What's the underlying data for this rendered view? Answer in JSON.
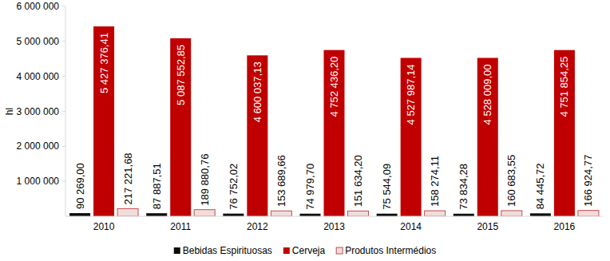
{
  "chart_data": {
    "type": "bar",
    "y_label": "hl",
    "categories": [
      "2010",
      "2011",
      "2012",
      "2013",
      "2014",
      "2015",
      "2016"
    ],
    "series": [
      {
        "name": "Bebidas Espirituosas",
        "color": "#0d0d0d",
        "values": [
          90269.0,
          87887.51,
          76752.02,
          74979.7,
          75544.09,
          73834.28,
          84445.72
        ],
        "value_labels": [
          "90 269,00",
          "87 887,51",
          "76 752,02",
          "74 979,70",
          "75 544,09",
          "73 834,28",
          "84 445,72"
        ]
      },
      {
        "name": "Cerveja",
        "color": "#c00000",
        "values": [
          5427376.41,
          5087552.85,
          4600037.13,
          4752436.2,
          4527987.14,
          4528009.0,
          4751854.25
        ],
        "value_labels": [
          "5 427 376,41",
          "5 087 552,85",
          "4 600 037,13",
          "4 752 436,20",
          "4 527 987,14",
          "4 528 009,00",
          "4 751 854,25"
        ]
      },
      {
        "name": "Produtos Intermédios",
        "color": "#f2dcdb",
        "values": [
          217221.68,
          189880.76,
          153689.66,
          151634.2,
          158274.11,
          160683.55,
          166924.77
        ],
        "value_labels": [
          "217 221,68",
          "189 880,76",
          "153 689,66",
          "151 634,20",
          "158 274,11",
          "160 683,55",
          "166 924,77"
        ]
      }
    ],
    "ylim": [
      0,
      6000000
    ],
    "yticks": [
      {
        "value": 1000000,
        "label": "1 000 000"
      },
      {
        "value": 2000000,
        "label": "2 000 000"
      },
      {
        "value": 3000000,
        "label": "3 000 000"
      },
      {
        "value": 4000000,
        "label": "4 000 000"
      },
      {
        "value": 5000000,
        "label": "5 000 000"
      },
      {
        "value": 6000000,
        "label": "6 000 000"
      }
    ],
    "grid": false,
    "legend": "bottom",
    "data_labels": true
  }
}
